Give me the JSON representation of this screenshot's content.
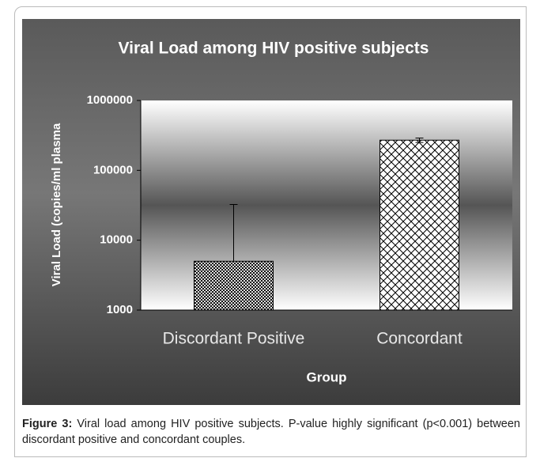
{
  "chart_data": {
    "type": "bar",
    "title": "Viral Load among HIV positive subjects",
    "x_label": "Group",
    "y_label": "Viral Load (copies/ml plasma",
    "categories": [
      "Discordant Positive",
      "Concordant"
    ],
    "series": [
      {
        "values": [
          5000,
          270000
        ],
        "errors": [
          27500,
          20000
        ]
      }
    ],
    "ylim": [
      1000,
      1000000
    ],
    "yticks": [
      1000,
      10000,
      100000,
      1000000
    ],
    "log_scale": true
  },
  "caption": {
    "label": "Figure 3:",
    "text": "Viral load among HIV positive subjects. P-value highly significant (p<0.001) between discordant positive and concordant couples."
  }
}
